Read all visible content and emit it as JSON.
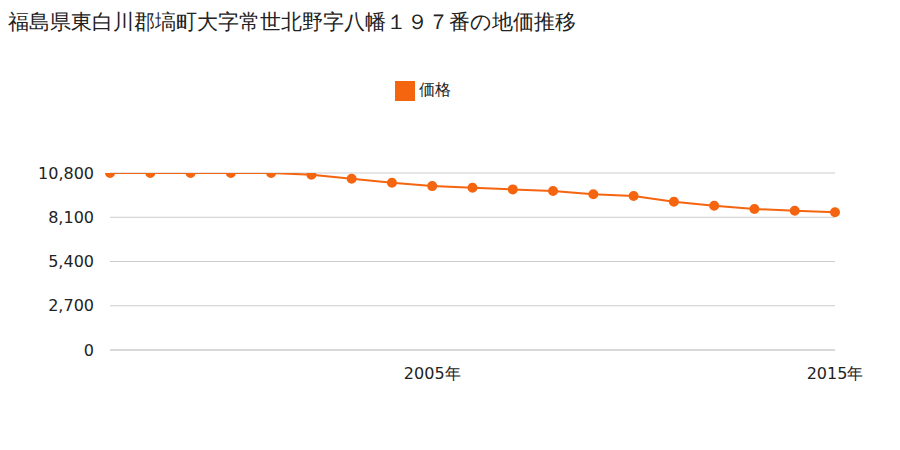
{
  "chart_data": {
    "type": "line",
    "title": "福島県東白川郡塙町大字常世北野字八幡１９７番の地価推移",
    "categories": [
      null,
      null,
      null,
      null,
      null,
      null,
      null,
      null,
      "2005年",
      null,
      null,
      null,
      null,
      null,
      null,
      null,
      null,
      null,
      "2015年"
    ],
    "series": [
      {
        "name": "価格",
        "color": "#f5640f",
        "marker": "circle",
        "values": [
          10800,
          10800,
          10800,
          10800,
          10800,
          10700,
          10450,
          10200,
          10000,
          9900,
          9800,
          9700,
          9500,
          9400,
          9050,
          8800,
          8600,
          8500,
          8400
        ]
      }
    ],
    "ylim": [
      0,
      10800
    ],
    "yticks": [
      {
        "value": 0,
        "label": "0"
      },
      {
        "value": 2700,
        "label": "2,700"
      },
      {
        "value": 5400,
        "label": "5,400"
      },
      {
        "value": 8100,
        "label": "8,100"
      },
      {
        "value": 10800,
        "label": "10,800"
      }
    ],
    "grid": true,
    "legend": "top"
  }
}
